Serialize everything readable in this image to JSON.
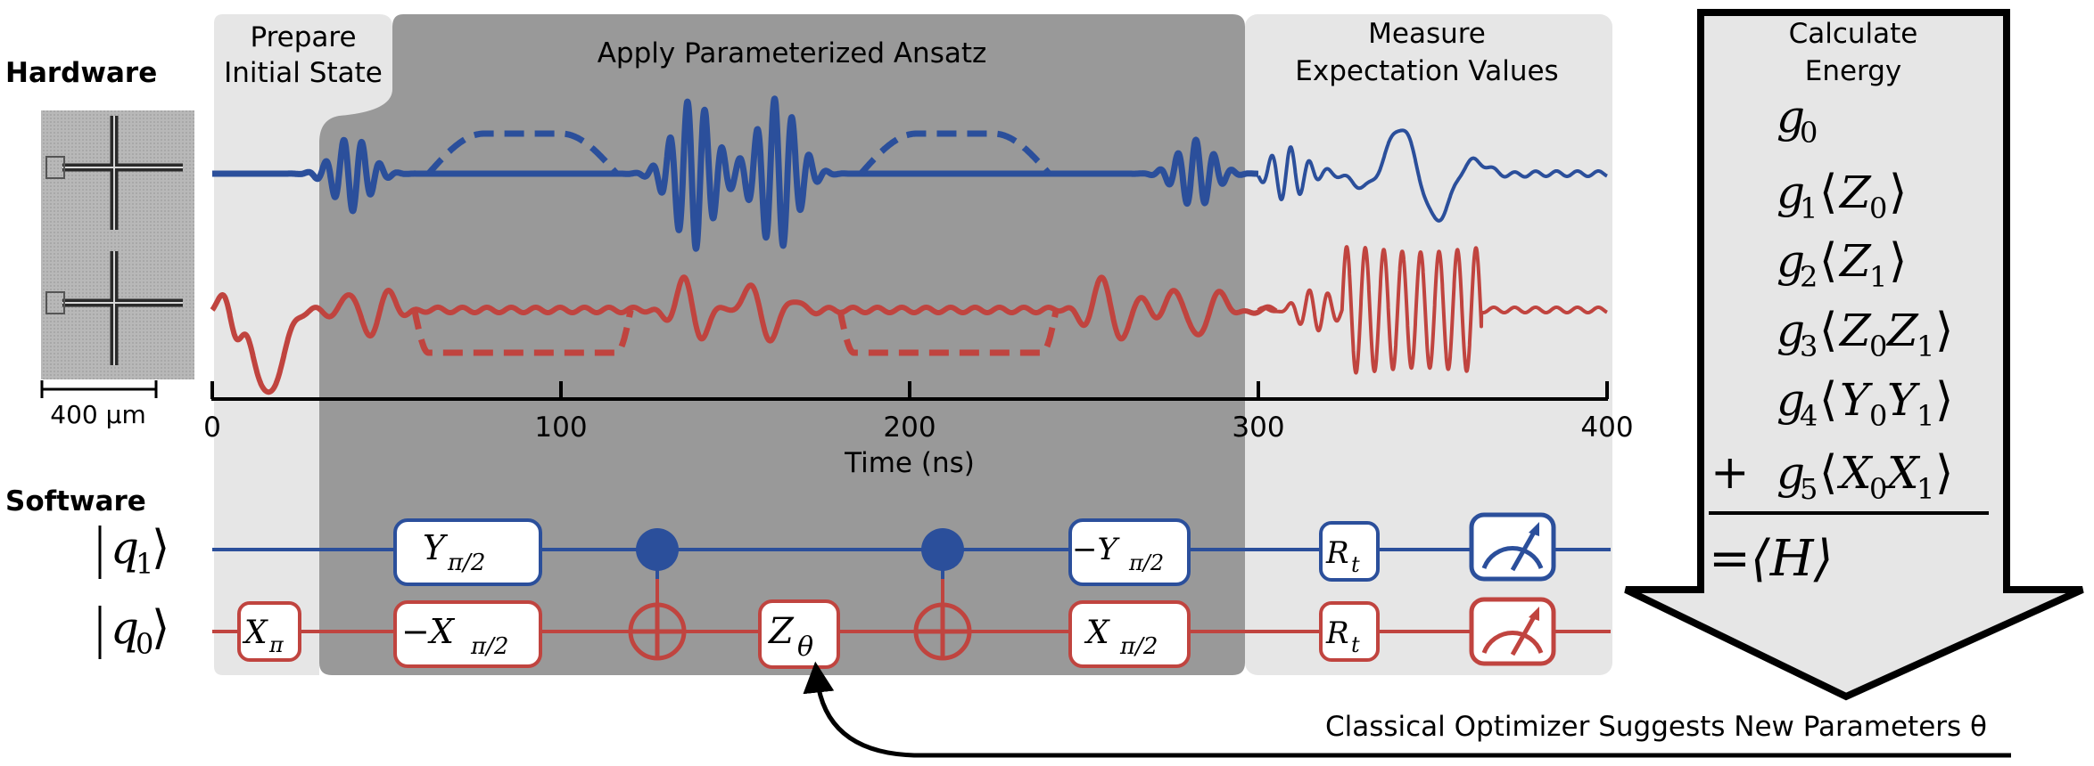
{
  "hardware_label": "Hardware",
  "software_label": "Software",
  "scale_bar_label": "400 µm",
  "stages": {
    "prepare": [
      "Prepare",
      "Initial State"
    ],
    "ansatz": "Apply Parameterized Ansatz",
    "measure": [
      "Measure",
      "Expectation Values"
    ],
    "energy": [
      "Calculate",
      "Energy"
    ]
  },
  "time_axis": {
    "label": "Time (ns)",
    "ticks": [
      "0",
      "100",
      "200",
      "300",
      "400"
    ],
    "range": [
      0,
      400
    ]
  },
  "qubits": [
    {
      "id": "q1",
      "label": "q",
      "sub": "1"
    },
    {
      "id": "q0",
      "label": "q",
      "sub": "0"
    }
  ],
  "gates": {
    "x_pi": {
      "base": "X",
      "sub": "π"
    },
    "y_pi2": {
      "base": "Y",
      "sub": "π/2"
    },
    "neg_x_pi2": {
      "base": "−X",
      "sub": "π/2"
    },
    "z_theta": {
      "base": "Z",
      "sub": "θ"
    },
    "neg_y_pi2": {
      "base": "−Y",
      "sub": "π/2"
    },
    "x_pi2": {
      "base": "X",
      "sub": "π/2"
    },
    "rt": {
      "base": "R",
      "sub": "t"
    }
  },
  "energy_terms": [
    {
      "coef": "g",
      "sub": "0",
      "op": ""
    },
    {
      "coef": "g",
      "sub": "1",
      "op": "Z0"
    },
    {
      "coef": "g",
      "sub": "2",
      "op": "Z1"
    },
    {
      "coef": "g",
      "sub": "3",
      "op": "Z0Z1"
    },
    {
      "coef": "g",
      "sub": "4",
      "op": "Y0Y1"
    },
    {
      "coef": "g",
      "sub": "5",
      "op": "X0X1"
    }
  ],
  "plus_sign": "+",
  "result": "=⟨H⟩",
  "feedback_label": "Classical Optimizer Suggests New Parameters θ",
  "colors": {
    "blue": "#2b4f9b",
    "red": "#c0443f",
    "dark_panel": "#999999",
    "light_panel": "#e6e6e6"
  }
}
